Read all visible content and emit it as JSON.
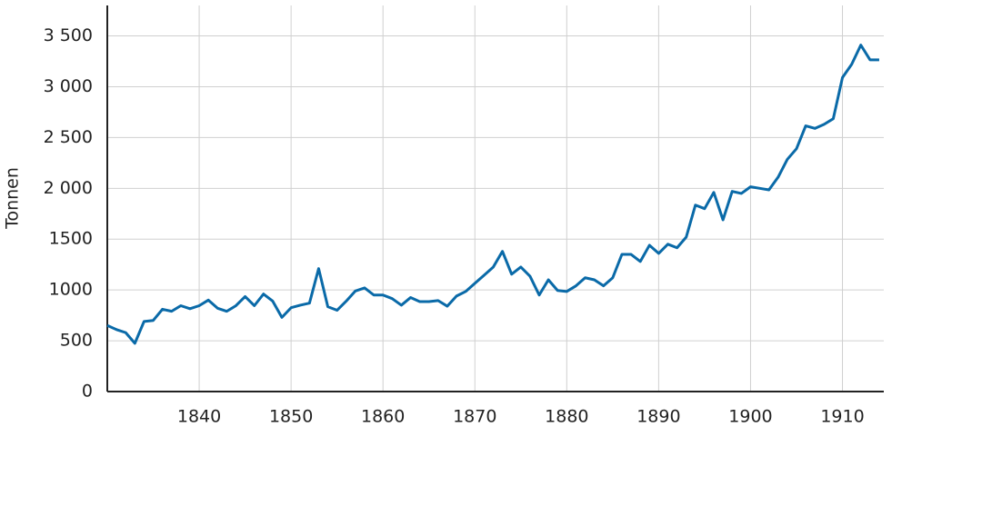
{
  "chart_data": {
    "type": "line",
    "y_label": "Tonnen",
    "x": [
      1830,
      1831,
      1832,
      1833,
      1834,
      1835,
      1836,
      1837,
      1838,
      1839,
      1840,
      1841,
      1842,
      1843,
      1844,
      1845,
      1846,
      1847,
      1848,
      1849,
      1850,
      1851,
      1852,
      1853,
      1854,
      1855,
      1856,
      1857,
      1858,
      1859,
      1860,
      1861,
      1862,
      1863,
      1864,
      1865,
      1866,
      1867,
      1868,
      1869,
      1870,
      1871,
      1872,
      1873,
      1874,
      1875,
      1876,
      1877,
      1878,
      1879,
      1880,
      1881,
      1882,
      1883,
      1884,
      1885,
      1886,
      1887,
      1888,
      1889,
      1890,
      1891,
      1892,
      1893,
      1894,
      1895,
      1896,
      1897,
      1898,
      1899,
      1900,
      1901,
      1902,
      1903,
      1904,
      1905,
      1906,
      1907,
      1908,
      1909,
      1910,
      1911,
      1912,
      1913,
      1914
    ],
    "series": [
      {
        "name": "Tonnen",
        "color": "#0a6aa8",
        "values": [
          650,
          610,
          580,
          475,
          690,
          700,
          810,
          790,
          845,
          815,
          845,
          900,
          820,
          790,
          845,
          935,
          845,
          960,
          890,
          730,
          825,
          850,
          870,
          1210,
          835,
          800,
          890,
          990,
          1020,
          950,
          950,
          915,
          850,
          925,
          885,
          885,
          895,
          840,
          940,
          985,
          1065,
          1145,
          1225,
          1380,
          1155,
          1225,
          1135,
          950,
          1100,
          995,
          985,
          1040,
          1120,
          1100,
          1040,
          1120,
          1350,
          1350,
          1280,
          1440,
          1360,
          1450,
          1415,
          1520,
          1835,
          1800,
          1960,
          1690,
          1970,
          1950,
          2015,
          2000,
          1985,
          2110,
          2285,
          2390,
          2615,
          2590,
          2630,
          2685,
          3090,
          3220,
          3410,
          3265,
          3265
        ]
      }
    ],
    "xlim": [
      1830,
      1914.5
    ],
    "xticks": [
      1840,
      1850,
      1860,
      1870,
      1880,
      1890,
      1900,
      1910
    ],
    "ylim": [
      0,
      3800
    ],
    "yticks": [
      0,
      500,
      {
        "value": 1000,
        "label": "1000"
      },
      {
        "value": 1500,
        "label": "1500"
      },
      {
        "value": 2000,
        "label": "2 000"
      },
      {
        "value": 2500,
        "label": "2 500"
      },
      {
        "value": 3000,
        "label": "3 000"
      },
      {
        "value": 3500,
        "label": "3 500"
      }
    ],
    "grid": true
  }
}
